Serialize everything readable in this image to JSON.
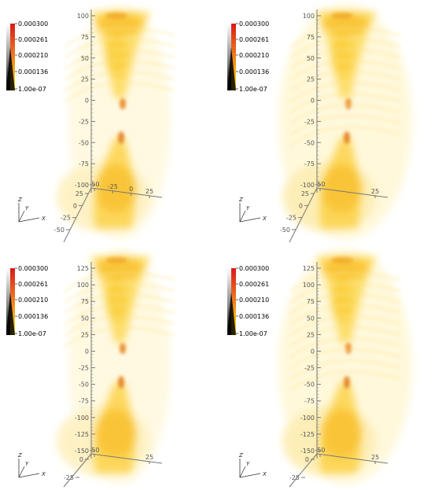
{
  "colorbar": {
    "labels": [
      "0.000300",
      "0.000261",
      "0.000210",
      "0.000136",
      "1.00e-07"
    ],
    "colors": {
      "top": "#d91a1a",
      "mid": "#f08020",
      "bottom": "#ffee00"
    }
  },
  "orientation": {
    "z": "Z",
    "y": "Y",
    "x": "X"
  },
  "panels": [
    {
      "id": "top-left",
      "z_ticks": [
        "100",
        "75",
        "50",
        "25",
        "0",
        "-25",
        "-50",
        "-75",
        "-100"
      ],
      "x_ticks": [
        "-50",
        "-25",
        "0",
        "25"
      ],
      "y_ticks": [
        "25",
        "0",
        "-25",
        "-50"
      ]
    },
    {
      "id": "top-right",
      "z_ticks": [
        "100",
        "75",
        "50",
        "25",
        "0",
        "-25",
        "-50",
        "-75",
        "-100"
      ],
      "x_ticks": [
        "-50",
        "25"
      ],
      "y_ticks": [
        "25",
        "0",
        "-25",
        "-50"
      ]
    },
    {
      "id": "bottom-left",
      "z_ticks": [
        "125",
        "100",
        "75",
        "50",
        "25",
        "0",
        "-25",
        "-50",
        "-75",
        "-100",
        "-125",
        "-150"
      ],
      "x_ticks": [
        "-50",
        "25"
      ],
      "y_ticks": [
        "0",
        "-25",
        "-50"
      ]
    },
    {
      "id": "bottom-right",
      "z_ticks": [
        "125",
        "100",
        "75",
        "50",
        "25",
        "0",
        "-25",
        "-50",
        "-75",
        "-100",
        "-125",
        "-150"
      ],
      "x_ticks": [
        "-50",
        "25"
      ],
      "y_ticks": [
        "0",
        "-25",
        "-50"
      ]
    }
  ]
}
